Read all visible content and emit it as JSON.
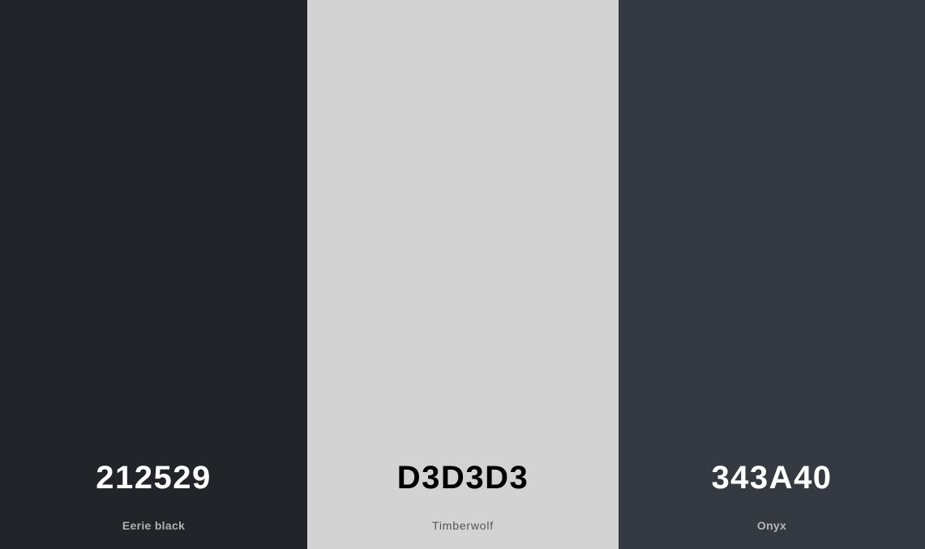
{
  "palette": {
    "swatches": [
      {
        "hex_label": "212529",
        "name": "Eerie black",
        "color": "#212529",
        "text_color": "#ffffff",
        "name_color": "#aeb0b3"
      },
      {
        "hex_label": "D3D3D3",
        "name": "Timberwolf",
        "color": "#d3d3d3",
        "text_color": "#000000",
        "name_color": "#555555"
      },
      {
        "hex_label": "343A40",
        "name": "Onyx",
        "color": "#343a40",
        "text_color": "#ffffff",
        "name_color": "#b5b8bb"
      }
    ]
  }
}
